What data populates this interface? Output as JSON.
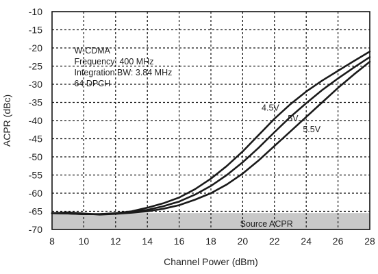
{
  "chart_data": {
    "type": "line",
    "xlabel": "Channel Power (dBm)",
    "ylabel": "ACPR (dBc)",
    "xlim": [
      8,
      28
    ],
    "ylim": [
      -70,
      -10
    ],
    "x_ticks": [
      8,
      10,
      12,
      14,
      16,
      18,
      20,
      22,
      24,
      26,
      28
    ],
    "y_ticks": [
      -10,
      -15,
      -20,
      -25,
      -30,
      -35,
      -40,
      -45,
      -50,
      -55,
      -60,
      -65,
      -70
    ],
    "grid": true,
    "annotation_lines": [
      "W-CDMA",
      "Frequency: 400 MHz",
      "Integration BW: 3.84 MHz",
      "64 DPCH"
    ],
    "floor_region": {
      "label": "Source ACPR",
      "y_range": [
        -70,
        -65.5
      ],
      "fill": "#c8c8c8"
    },
    "series": [
      {
        "name": "4.5V",
        "x": [
          8,
          9,
          10,
          11,
          12,
          13,
          14,
          15,
          16,
          17,
          18,
          19,
          20,
          21,
          22,
          23,
          24,
          25,
          26,
          27,
          28
        ],
        "y": [
          -65.5,
          -65.6,
          -65.8,
          -65.8,
          -65.5,
          -65,
          -64,
          -62.8,
          -61.2,
          -58.9,
          -56,
          -52.5,
          -48.5,
          -44,
          -39.5,
          -35.5,
          -32,
          -29,
          -26.3,
          -23.6,
          -21
        ]
      },
      {
        "name": "5V",
        "x": [
          8,
          9,
          10,
          11,
          12,
          13,
          14,
          15,
          16,
          17,
          18,
          19,
          20,
          21,
          22,
          23,
          24,
          25,
          26,
          27,
          28
        ],
        "y": [
          -65.5,
          -65.6,
          -65.8,
          -65.8,
          -65.6,
          -65.2,
          -64.6,
          -63.6,
          -62.3,
          -60.4,
          -58,
          -55,
          -51.5,
          -47.5,
          -43.2,
          -39,
          -35.2,
          -31.6,
          -28.4,
          -25.4,
          -22.5
        ]
      },
      {
        "name": "5.5V",
        "x": [
          8,
          9,
          10,
          11,
          12,
          13,
          14,
          15,
          16,
          17,
          18,
          19,
          20,
          21,
          22,
          23,
          24,
          25,
          26,
          27,
          28
        ],
        "y": [
          -65.5,
          -65.3,
          -65.6,
          -65.9,
          -65.7,
          -65.4,
          -65,
          -64.3,
          -63.3,
          -61.8,
          -60,
          -57.6,
          -54.6,
          -51,
          -47,
          -43,
          -39,
          -35,
          -31,
          -27.3,
          -23.8
        ]
      }
    ]
  }
}
